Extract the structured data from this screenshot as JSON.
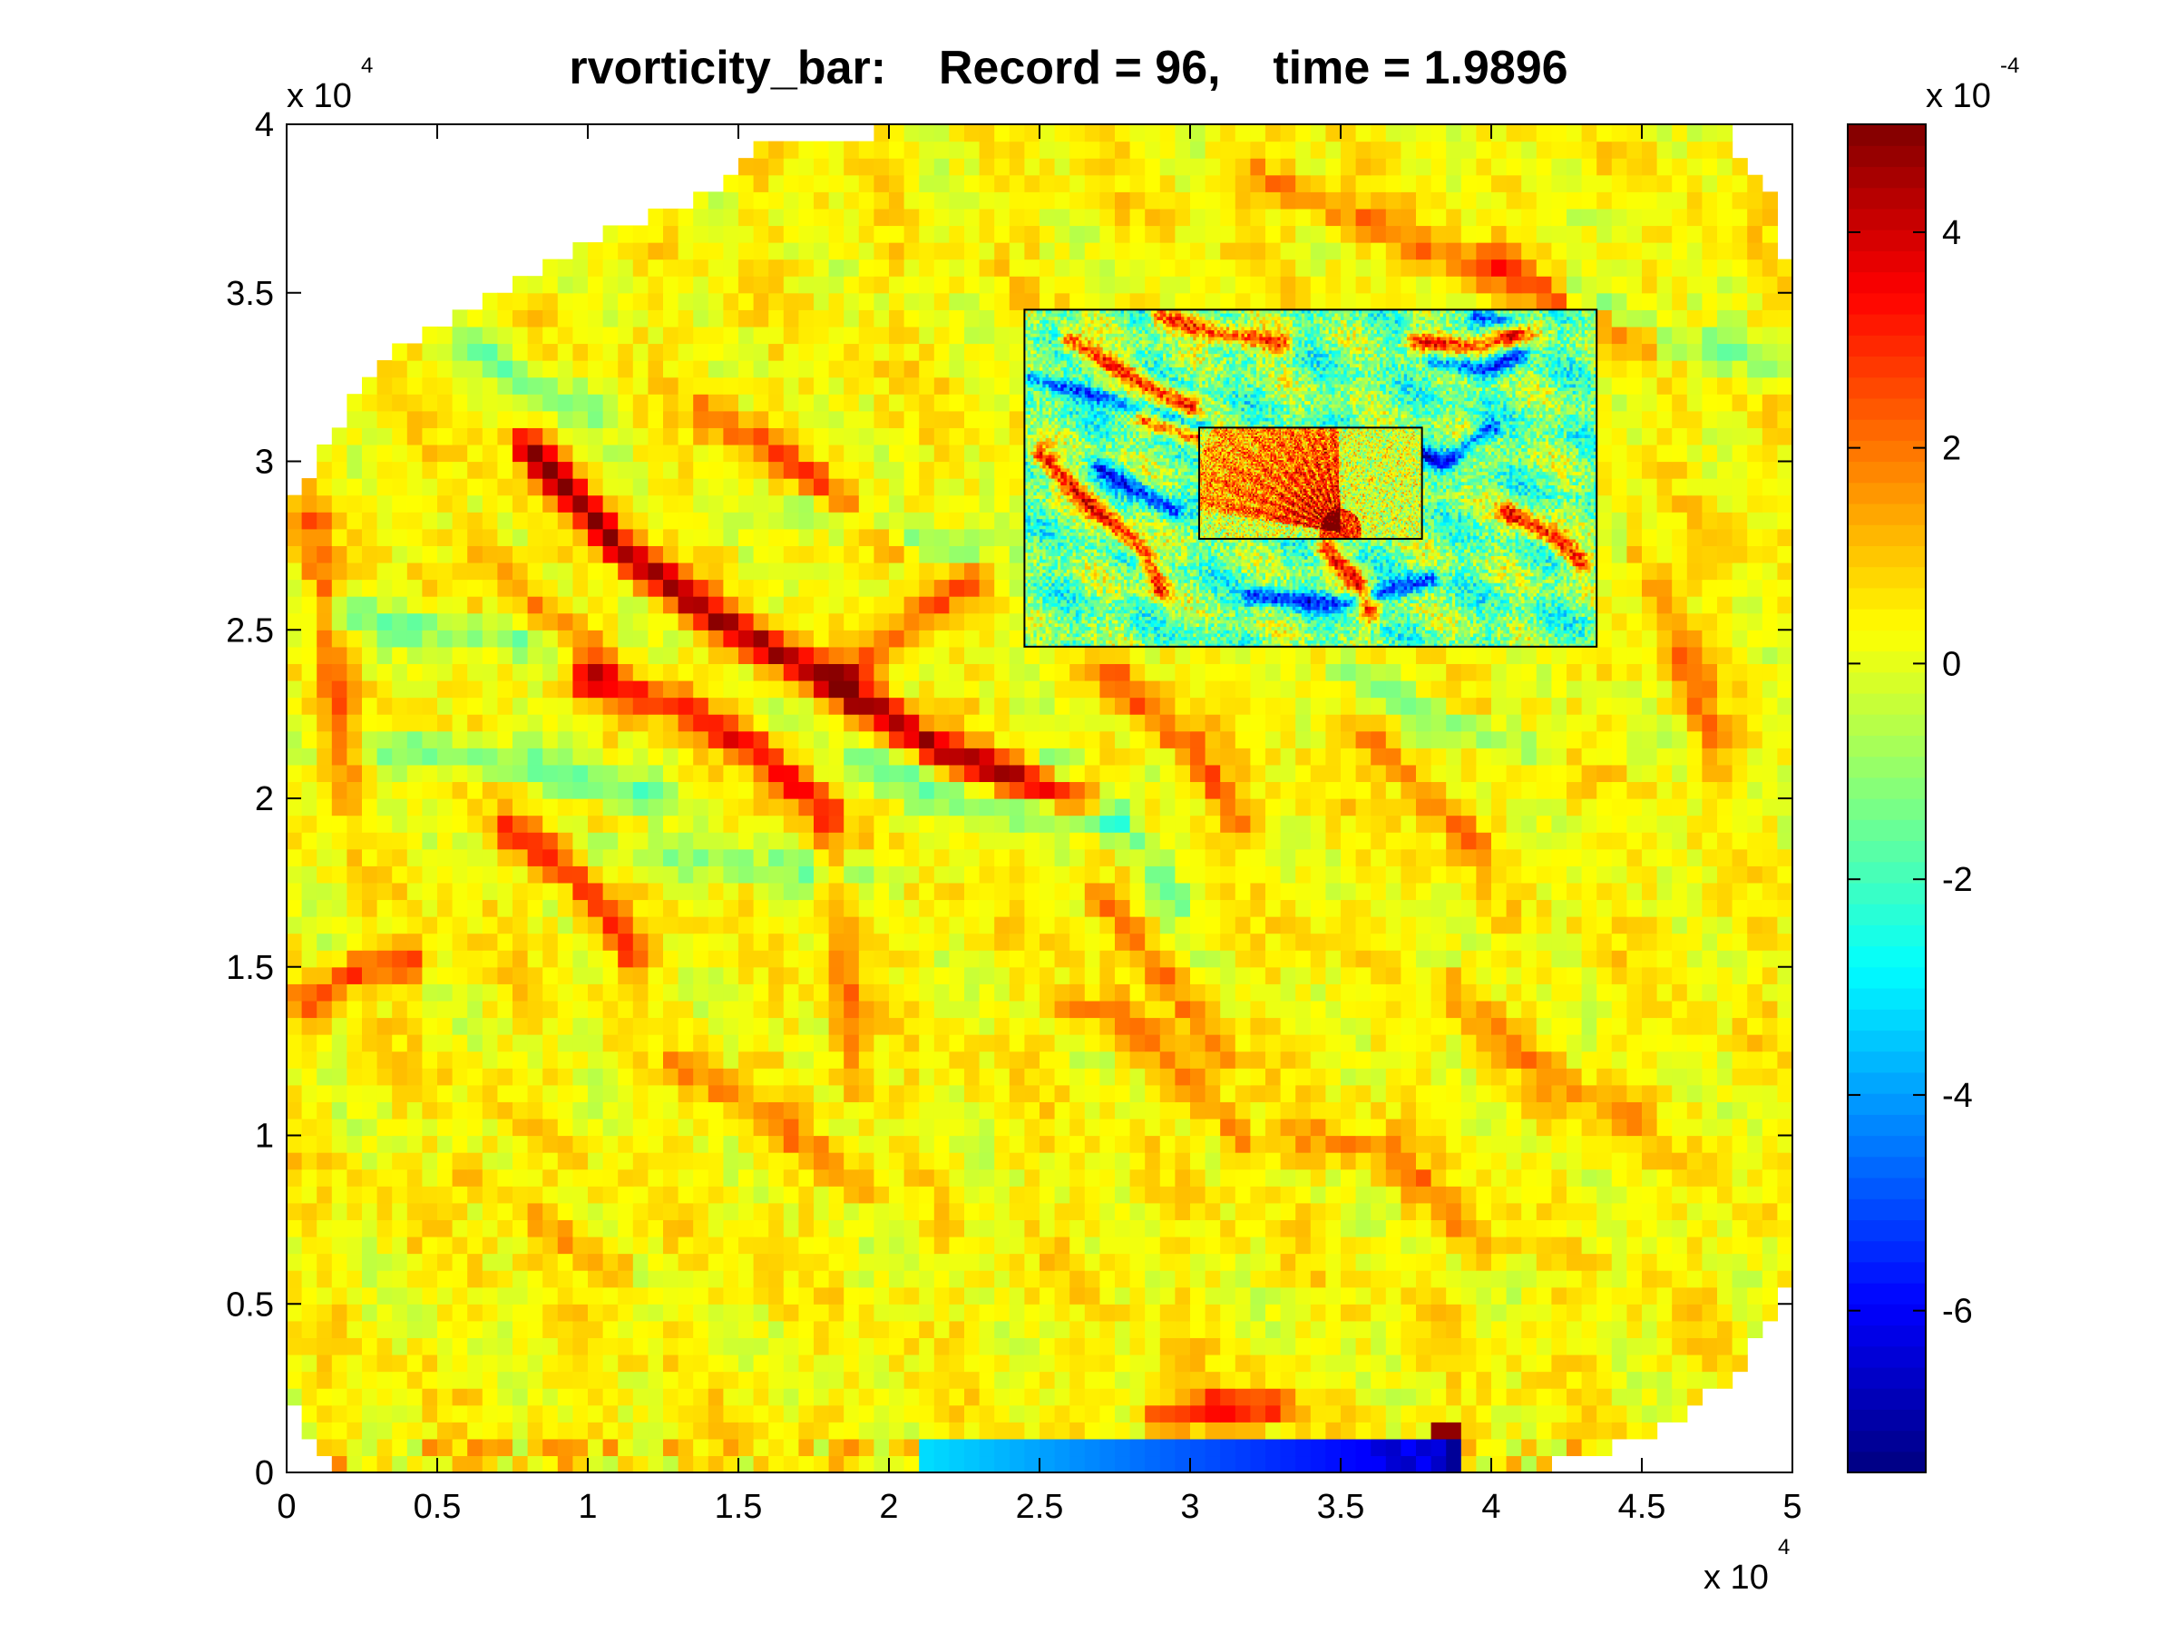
{
  "chart_data": {
    "type": "heatmap",
    "title": "rvorticity_bar:    Record = 96,    time = 1.9896",
    "xlabel": "",
    "ylabel": "",
    "xlim": [
      0,
      50000
    ],
    "ylim": [
      0,
      40000
    ],
    "x_ticks": [
      0,
      0.5,
      1,
      1.5,
      2,
      2.5,
      3,
      3.5,
      4,
      4.5,
      5
    ],
    "x_tick_labels": [
      "0",
      "0.5",
      "1",
      "1.5",
      "2",
      "2.5",
      "3",
      "3.5",
      "4",
      "4.5",
      "5"
    ],
    "y_ticks": [
      0,
      0.5,
      1,
      1.5,
      2,
      2.5,
      3,
      3.5,
      4
    ],
    "y_tick_labels": [
      "0",
      "0.5",
      "1",
      "1.5",
      "2",
      "2.5",
      "3",
      "3.5",
      "4"
    ],
    "x_multiplier": {
      "base": "x 10",
      "exponent": "4"
    },
    "y_multiplier": {
      "base": "x 10",
      "exponent": "4"
    },
    "colormap": "jet",
    "colorbar": {
      "clim": [
        -7.5,
        5.0
      ],
      "ticks": [
        4,
        2,
        0,
        -2,
        -4,
        -6
      ],
      "tick_labels": [
        "4",
        "2",
        "0",
        "-2",
        "-4",
        "-6"
      ],
      "multiplier": {
        "base": "x 10",
        "exponent": "-4"
      }
    },
    "nested_grids": [
      {
        "name": "inner grid 1",
        "x_range": [
          24500,
          43500
        ],
        "y_range": [
          24500,
          34500
        ]
      },
      {
        "name": "inner grid 2",
        "x_range": [
          30300,
          37700
        ],
        "y_range": [
          27700,
          31000
        ]
      }
    ],
    "grid": false,
    "legend": "none"
  }
}
